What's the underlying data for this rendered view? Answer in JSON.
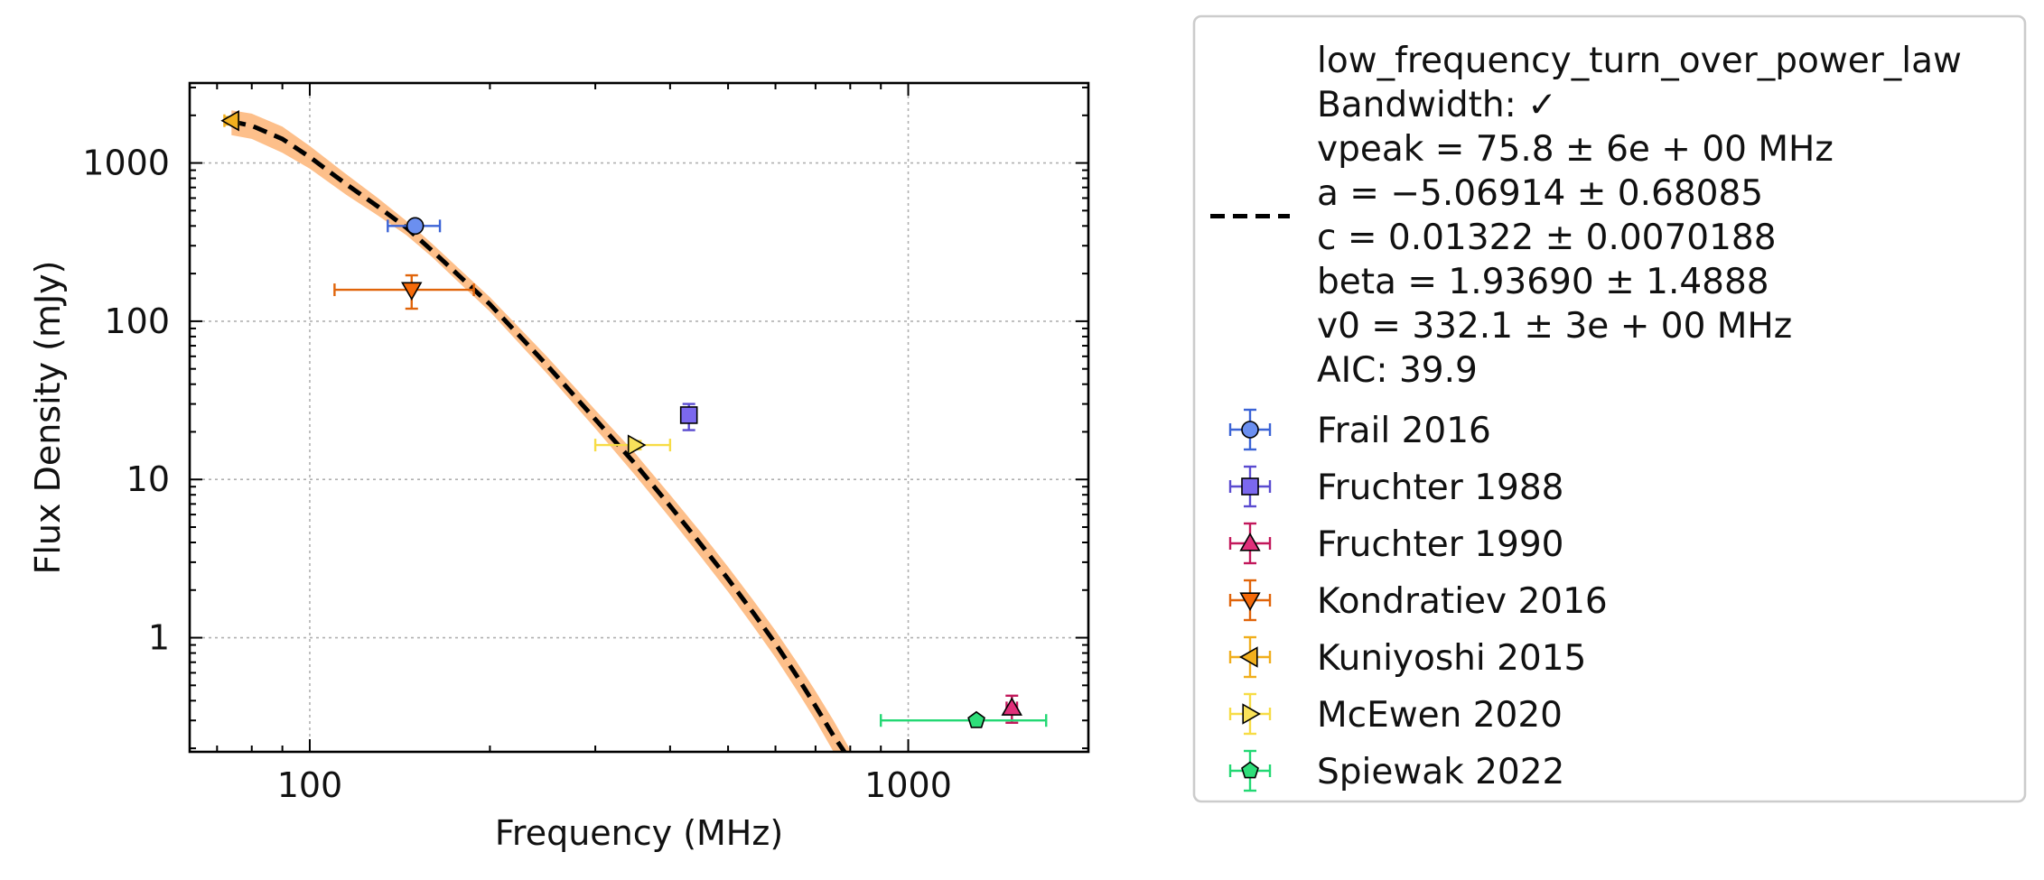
{
  "chart_data": {
    "type": "scatter",
    "xlabel": "Frequency (MHz)",
    "ylabel": "Flux Density (mJy)",
    "xscale": "log",
    "yscale": "log",
    "xlim": [
      63,
      2000
    ],
    "ylim": [
      0.19,
      3200
    ],
    "grid": true,
    "legend_position": "outside-right",
    "x_ticks": [
      {
        "value": 100,
        "label": "100"
      },
      {
        "value": 1000,
        "label": "1000"
      }
    ],
    "y_ticks": [
      {
        "value": 1,
        "label": "1"
      },
      {
        "value": 10,
        "label": "10"
      },
      {
        "value": 100,
        "label": "100"
      },
      {
        "value": 1000,
        "label": "1000"
      }
    ],
    "fit": {
      "label_lines": [
        "low_frequency_turn_over_power_law",
        "Bandwidth: ✓",
        "vpeak = 75.8 ± 6e + 00 MHz",
        "a = −5.06914 ± 0.68085",
        "c = 0.01322 ± 0.0070188",
        "beta = 1.93690 ± 1.4888",
        "v0 = 332.1 ± 3e + 00 MHz",
        "AIC: 39.9"
      ],
      "line_color": "#000000",
      "band_color": "#fdbf8a",
      "line": [
        [
          74,
          1830
        ],
        [
          80,
          1720
        ],
        [
          90,
          1420
        ],
        [
          100,
          1090
        ],
        [
          115,
          735
        ],
        [
          130,
          530
        ],
        [
          145,
          390
        ],
        [
          160,
          280
        ],
        [
          180,
          185
        ],
        [
          200,
          128
        ],
        [
          250,
          52
        ],
        [
          300,
          24
        ],
        [
          350,
          12.5
        ],
        [
          400,
          6.8
        ],
        [
          450,
          3.9
        ],
        [
          500,
          2.35
        ],
        [
          550,
          1.45
        ],
        [
          600,
          0.92
        ],
        [
          650,
          0.58
        ],
        [
          700,
          0.37
        ],
        [
          750,
          0.24
        ],
        [
          790,
          0.18
        ]
      ],
      "band_upper": [
        [
          74,
          2150
        ],
        [
          80,
          2050
        ],
        [
          90,
          1700
        ],
        [
          100,
          1280
        ],
        [
          115,
          850
        ],
        [
          130,
          600
        ],
        [
          145,
          430
        ],
        [
          160,
          310
        ],
        [
          180,
          205
        ],
        [
          200,
          142
        ],
        [
          250,
          59
        ],
        [
          300,
          27.5
        ],
        [
          350,
          14.6
        ],
        [
          400,
          8.0
        ],
        [
          450,
          4.65
        ],
        [
          500,
          2.8
        ],
        [
          550,
          1.74
        ],
        [
          600,
          1.11
        ],
        [
          650,
          0.71
        ],
        [
          700,
          0.46
        ],
        [
          750,
          0.3
        ],
        [
          810,
          0.18
        ]
      ],
      "band_lower": [
        [
          74,
          1500
        ],
        [
          80,
          1420
        ],
        [
          90,
          1160
        ],
        [
          100,
          920
        ],
        [
          115,
          630
        ],
        [
          130,
          465
        ],
        [
          145,
          350
        ],
        [
          160,
          255
        ],
        [
          180,
          167
        ],
        [
          200,
          115
        ],
        [
          250,
          46
        ],
        [
          300,
          21
        ],
        [
          350,
          10.6
        ],
        [
          400,
          5.7
        ],
        [
          450,
          3.25
        ],
        [
          500,
          1.95
        ],
        [
          550,
          1.19
        ],
        [
          600,
          0.75
        ],
        [
          650,
          0.47
        ],
        [
          700,
          0.3
        ],
        [
          750,
          0.19
        ],
        [
          770,
          0.18
        ]
      ]
    },
    "series": [
      {
        "name": "Frail 2016",
        "marker": "circle",
        "color": "#6b8ff0",
        "edge": "#3b63d6",
        "points": [
          {
            "x": 150,
            "y": 400,
            "xerr": [
              135,
              165
            ],
            "yerr": [
              370,
              430
            ]
          }
        ]
      },
      {
        "name": "Fruchter 1988",
        "marker": "square",
        "color": "#7b68ee",
        "edge": "#5a4bd0",
        "points": [
          {
            "x": 430,
            "y": 25.5,
            "xerr": [
              423,
              437
            ],
            "yerr": [
              20.5,
              30
            ]
          }
        ]
      },
      {
        "name": "Fruchter 1990",
        "marker": "triangle-up",
        "color": "#e0307a",
        "edge": "#c2185b",
        "points": [
          {
            "x": 1490,
            "y": 0.36,
            "xerr": [
              1460,
              1520
            ],
            "yerr": [
              0.29,
              0.43
            ]
          }
        ]
      },
      {
        "name": "Kondratiev 2016",
        "marker": "triangle-down",
        "color": "#f56a0a",
        "edge": "#e0640a",
        "points": [
          {
            "x": 148,
            "y": 158,
            "xerr": [
              110,
              188
            ],
            "yerr": [
              120,
              195
            ]
          }
        ]
      },
      {
        "name": "Kuniyoshi 2015",
        "marker": "triangle-left",
        "color": "#f2b01e",
        "edge": "#f0ae1b",
        "points": [
          {
            "x": 74,
            "y": 1850,
            "xerr": [
              72,
              76
            ],
            "yerr": [
              1750,
              1950
            ]
          }
        ]
      },
      {
        "name": "McEwen 2020",
        "marker": "triangle-right",
        "color": "#f9e25a",
        "edge": "#f7dc45",
        "points": [
          {
            "x": 350,
            "y": 16.5,
            "xerr": [
              300,
              400
            ],
            "yerr": [
              15.5,
              17.5
            ]
          }
        ]
      },
      {
        "name": "Spiewak 2022",
        "marker": "pentagon",
        "color": "#2ede79",
        "edge": "#22d873",
        "points": [
          {
            "x": 1300,
            "y": 0.3,
            "xerr": [
              900,
              1700
            ],
            "yerr": [
              0.285,
              0.315
            ]
          }
        ]
      }
    ]
  }
}
